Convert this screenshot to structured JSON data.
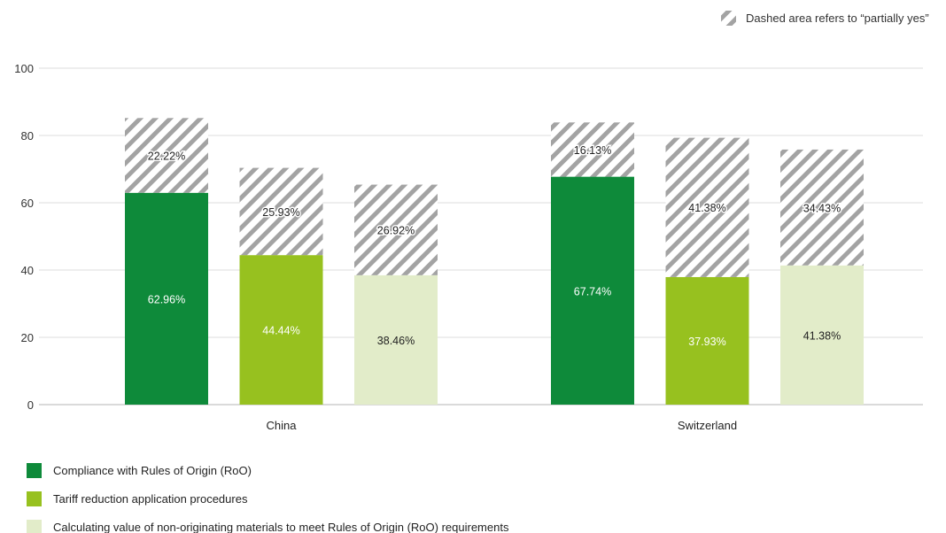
{
  "chart_data": {
    "type": "bar",
    "stacked": true,
    "categories": [
      "China",
      "Switzerland"
    ],
    "ylim": [
      0,
      100
    ],
    "yticks": [
      0,
      20,
      40,
      60,
      80,
      100
    ],
    "grid": true,
    "note": "Dashed area refers to “partially yes”",
    "series": [
      {
        "name": "Compliance with Rules of Origin (RoO)",
        "color": "#0e8a3a",
        "label_color": "#ffffff",
        "yes": [
          62.96,
          67.74
        ],
        "yes_labels": [
          "62.96%",
          "67.74%"
        ],
        "partially": [
          22.22,
          16.13
        ],
        "partially_labels": [
          "22.22%",
          "16.13%"
        ]
      },
      {
        "name": "Tariff reduction application procedures",
        "color": "#97c11f",
        "label_color": "#ffffff",
        "yes": [
          44.44,
          37.93
        ],
        "yes_labels": [
          "44.44%",
          "37.93%"
        ],
        "partially": [
          25.93,
          41.38
        ],
        "partially_labels": [
          "25.93%",
          "41.38%"
        ]
      },
      {
        "name": "Calculating value of non-originating materials to meet Rules of Origin (RoO) requirements",
        "color": "#e2ecc9",
        "label_color": "#222222",
        "yes": [
          38.46,
          41.38
        ],
        "yes_labels": [
          "38.46%",
          "41.38%"
        ],
        "partially": [
          26.92,
          34.43
        ],
        "partially_labels": [
          "26.92%",
          "34.43%"
        ]
      }
    ],
    "hatch_color": "#a3a3a3",
    "legend": "bottom-left"
  }
}
